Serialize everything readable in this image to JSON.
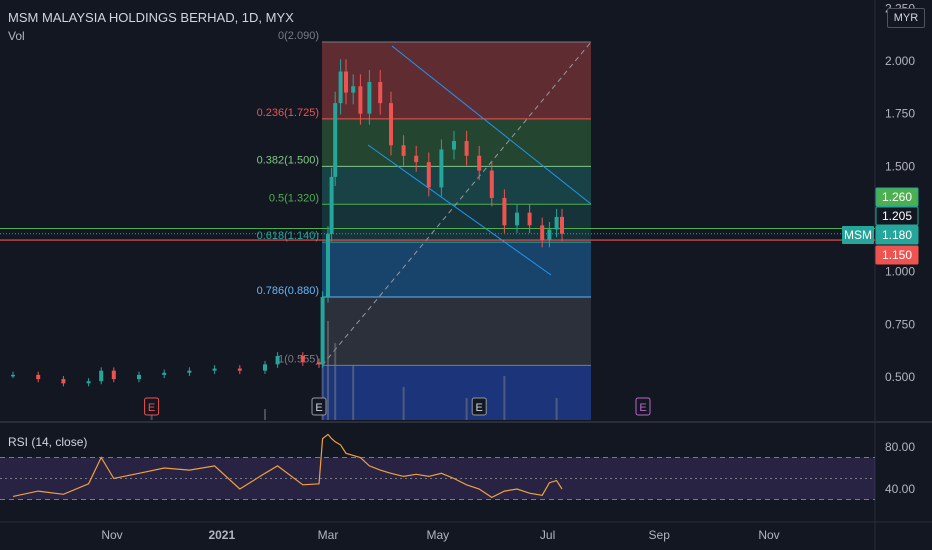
{
  "header": {
    "title": "MSM MALAYSIA HOLDINGS BERHAD, 1D, MYX",
    "vol_label": "Vol",
    "currency": "MYR"
  },
  "rsi": {
    "label": "RSI (14, close)",
    "ticks": [
      "80.00",
      "40.00"
    ]
  },
  "colors": {
    "background": "#131722",
    "up": "#26a69a",
    "down": "#ef5350",
    "rsi_line": "#f0a040",
    "rsi_band": "#7e57c2",
    "channel": "#2196f3",
    "price_label": "#26a69a"
  },
  "chart_data": [
    {
      "type": "candlestick",
      "title": "MSM MALAYSIA HOLDINGS BERHAD, 1D, MYX",
      "y_ticks": [
        "2.250",
        "2.000",
        "1.750",
        "1.500",
        "1.250",
        "1.000",
        "0.750",
        "0.500"
      ],
      "x_ticks": [
        "Nov",
        "2021",
        "Mar",
        "May",
        "Jul",
        "Sep",
        "Nov"
      ],
      "price_series": [
        {
          "date": "2020-09-07",
          "close": 0.51
        },
        {
          "date": "2020-09-21",
          "close": 0.49
        },
        {
          "date": "2020-10-05",
          "close": 0.47
        },
        {
          "date": "2020-10-19",
          "close": 0.48
        },
        {
          "date": "2020-10-26",
          "close": 0.53
        },
        {
          "date": "2020-11-02",
          "close": 0.49
        },
        {
          "date": "2020-11-16",
          "close": 0.51
        },
        {
          "date": "2020-11-30",
          "close": 0.52
        },
        {
          "date": "2020-12-14",
          "close": 0.53
        },
        {
          "date": "2020-12-28",
          "close": 0.54
        },
        {
          "date": "2021-01-11",
          "close": 0.53
        },
        {
          "date": "2021-01-25",
          "close": 0.56
        },
        {
          "date": "2021-02-01",
          "close": 0.6
        },
        {
          "date": "2021-02-15",
          "close": 0.57
        },
        {
          "date": "2021-02-24",
          "close": 0.56
        },
        {
          "date": "2021-02-26",
          "close": 0.88
        },
        {
          "date": "2021-03-01",
          "close": 1.18
        },
        {
          "date": "2021-03-03",
          "close": 1.45
        },
        {
          "date": "2021-03-05",
          "close": 1.8
        },
        {
          "date": "2021-03-08",
          "close": 1.95
        },
        {
          "date": "2021-03-11",
          "close": 1.85
        },
        {
          "date": "2021-03-15",
          "close": 1.88
        },
        {
          "date": "2021-03-19",
          "close": 1.75
        },
        {
          "date": "2021-03-24",
          "close": 1.9
        },
        {
          "date": "2021-03-30",
          "close": 1.8
        },
        {
          "date": "2021-04-05",
          "close": 1.6
        },
        {
          "date": "2021-04-12",
          "close": 1.55
        },
        {
          "date": "2021-04-19",
          "close": 1.52
        },
        {
          "date": "2021-04-26",
          "close": 1.4
        },
        {
          "date": "2021-05-03",
          "close": 1.58
        },
        {
          "date": "2021-05-10",
          "close": 1.62
        },
        {
          "date": "2021-05-17",
          "close": 1.55
        },
        {
          "date": "2021-05-24",
          "close": 1.48
        },
        {
          "date": "2021-05-31",
          "close": 1.35
        },
        {
          "date": "2021-06-07",
          "close": 1.22
        },
        {
          "date": "2021-06-14",
          "close": 1.28
        },
        {
          "date": "2021-06-21",
          "close": 1.22
        },
        {
          "date": "2021-06-28",
          "close": 1.15
        },
        {
          "date": "2021-07-02",
          "close": 1.2
        },
        {
          "date": "2021-07-06",
          "close": 1.26
        },
        {
          "date": "2021-07-09",
          "close": 1.18
        }
      ],
      "price_labels": [
        {
          "value": "1.260",
          "kind": "up"
        },
        {
          "value": "1.205",
          "kind": "up"
        },
        {
          "value": "1.180",
          "kind": "up",
          "tag": "MSM"
        },
        {
          "value": "1.150",
          "kind": "down"
        }
      ],
      "fib_levels": [
        {
          "ratio": "0",
          "value": 2.09,
          "label": "0(2.090)"
        },
        {
          "ratio": "0.236",
          "value": 1.725,
          "label": "0.236(1.725)"
        },
        {
          "ratio": "0.382",
          "value": 1.5,
          "label": "0.382(1.500)"
        },
        {
          "ratio": "0.5",
          "value": 1.32,
          "label": "0.5(1.320)"
        },
        {
          "ratio": "0.618",
          "value": 1.14,
          "label": "0.618(1.140)"
        },
        {
          "ratio": "0.786",
          "value": 0.88,
          "label": "0.786(0.880)"
        },
        {
          "ratio": "1",
          "value": 0.555,
          "label": "1(0.555)"
        }
      ],
      "horizontal_lines": [
        1.26,
        1.205,
        1.15
      ],
      "earnings_markers": [
        {
          "date": "2020-11-23",
          "label": "E",
          "kind": "past-miss"
        },
        {
          "date": "2021-02-24",
          "label": "E",
          "kind": "past"
        },
        {
          "date": "2021-05-24",
          "label": "E",
          "kind": "past"
        },
        {
          "date": "2021-08-23",
          "label": "E",
          "kind": "future"
        }
      ],
      "volume_series": [
        {
          "date": "2020-11-23",
          "value": 1
        },
        {
          "date": "2021-01-25",
          "value": 1
        },
        {
          "date": "2021-02-26",
          "value": 10
        },
        {
          "date": "2021-03-01",
          "value": 9
        },
        {
          "date": "2021-03-05",
          "value": 7
        },
        {
          "date": "2021-03-15",
          "value": 5
        },
        {
          "date": "2021-04-12",
          "value": 3
        },
        {
          "date": "2021-05-17",
          "value": 2
        },
        {
          "date": "2021-06-07",
          "value": 4
        },
        {
          "date": "2021-07-06",
          "value": 2
        }
      ]
    },
    {
      "type": "line",
      "title": "RSI (14, close)",
      "y_ticks": [
        "80.00",
        "40.00"
      ],
      "bands": [
        70,
        50,
        30
      ],
      "series": [
        {
          "date": "2020-09-07",
          "value": 33
        },
        {
          "date": "2020-09-21",
          "value": 38
        },
        {
          "date": "2020-10-05",
          "value": 35
        },
        {
          "date": "2020-10-19",
          "value": 45
        },
        {
          "date": "2020-10-26",
          "value": 70
        },
        {
          "date": "2020-11-02",
          "value": 50
        },
        {
          "date": "2020-11-16",
          "value": 55
        },
        {
          "date": "2020-11-30",
          "value": 60
        },
        {
          "date": "2020-12-14",
          "value": 58
        },
        {
          "date": "2020-12-28",
          "value": 62
        },
        {
          "date": "2021-01-11",
          "value": 40
        },
        {
          "date": "2021-01-25",
          "value": 55
        },
        {
          "date": "2021-02-01",
          "value": 62
        },
        {
          "date": "2021-02-15",
          "value": 44
        },
        {
          "date": "2021-02-24",
          "value": 45
        },
        {
          "date": "2021-02-26",
          "value": 88
        },
        {
          "date": "2021-03-01",
          "value": 92
        },
        {
          "date": "2021-03-03",
          "value": 88
        },
        {
          "date": "2021-03-05",
          "value": 85
        },
        {
          "date": "2021-03-08",
          "value": 82
        },
        {
          "date": "2021-03-11",
          "value": 74
        },
        {
          "date": "2021-03-15",
          "value": 72
        },
        {
          "date": "2021-03-19",
          "value": 70
        },
        {
          "date": "2021-03-24",
          "value": 62
        },
        {
          "date": "2021-03-30",
          "value": 58
        },
        {
          "date": "2021-04-05",
          "value": 55
        },
        {
          "date": "2021-04-12",
          "value": 52
        },
        {
          "date": "2021-04-19",
          "value": 54
        },
        {
          "date": "2021-04-26",
          "value": 52
        },
        {
          "date": "2021-05-03",
          "value": 55
        },
        {
          "date": "2021-05-10",
          "value": 50
        },
        {
          "date": "2021-05-17",
          "value": 44
        },
        {
          "date": "2021-05-24",
          "value": 40
        },
        {
          "date": "2021-05-31",
          "value": 32
        },
        {
          "date": "2021-06-07",
          "value": 38
        },
        {
          "date": "2021-06-14",
          "value": 40
        },
        {
          "date": "2021-06-21",
          "value": 36
        },
        {
          "date": "2021-06-28",
          "value": 34
        },
        {
          "date": "2021-07-02",
          "value": 46
        },
        {
          "date": "2021-07-06",
          "value": 48
        },
        {
          "date": "2021-07-09",
          "value": 40
        }
      ]
    }
  ]
}
